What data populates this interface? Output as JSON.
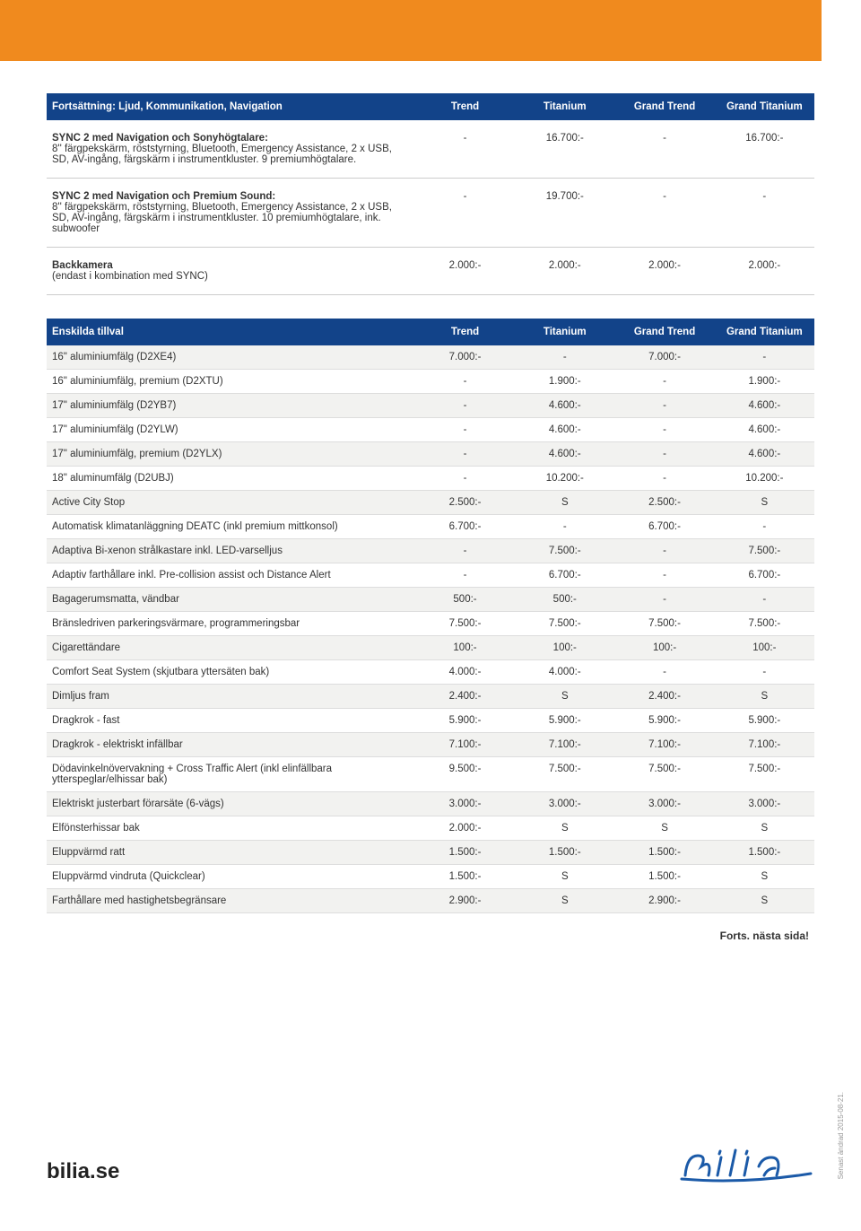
{
  "colors": {
    "orange": "#f08a1e",
    "header_blue": "#124389",
    "row_alt": "#f2f2f0",
    "text": "#333333",
    "border": "#cccccc"
  },
  "table1": {
    "header": [
      "Fortsättning: Ljud, Kommunikation, Navigation",
      "Trend",
      "Titanium",
      "Grand Trend",
      "Grand Titanium"
    ],
    "rows": [
      {
        "title": "SYNC 2 med Navigation och Sonyhögtalare:",
        "desc": "8'' färgpekskärm, röststyrning, Bluetooth, Emergency Assistance, 2 x USB, SD, AV-ingång, färgskärm i instrumentkluster. 9 premiumhögtalare.",
        "vals": [
          "-",
          "16.700:-",
          "-",
          "16.700:-"
        ]
      },
      {
        "title": "SYNC 2 med Navigation och Premium Sound:",
        "desc": "8'' färgpekskärm, röststyrning, Bluetooth, Emergency Assistance, 2 x USB, SD, AV-ingång, färgskärm i instrumentkluster. 10 premiumhögtalare, ink. subwoofer",
        "vals": [
          "-",
          "19.700:-",
          "-",
          "-"
        ]
      },
      {
        "title": "Backkamera",
        "desc": "(endast i kombination med SYNC)",
        "vals": [
          "2.000:-",
          "2.000:-",
          "2.000:-",
          "2.000:-"
        ]
      }
    ]
  },
  "table2": {
    "header": [
      "Enskilda tillval",
      "Trend",
      "Titanium",
      "Grand Trend",
      "Grand Titanium"
    ],
    "rows": [
      [
        "16\" aluminiumfälg (D2XE4)",
        "7.000:-",
        "-",
        "7.000:-",
        "-"
      ],
      [
        "16\" aluminiumfälg, premium (D2XTU)",
        "-",
        "1.900:-",
        "-",
        "1.900:-"
      ],
      [
        "17\" aluminiumfälg (D2YB7)",
        "-",
        "4.600:-",
        "-",
        "4.600:-"
      ],
      [
        "17\" aluminiumfälg (D2YLW)",
        "-",
        "4.600:-",
        "-",
        "4.600:-"
      ],
      [
        "17\" aluminiumfälg, premium (D2YLX)",
        "-",
        "4.600:-",
        "-",
        "4.600:-"
      ],
      [
        "18\" aluminumfälg (D2UBJ)",
        "-",
        "10.200:-",
        "-",
        "10.200:-"
      ],
      [
        "Active City Stop",
        "2.500:-",
        "S",
        "2.500:-",
        "S"
      ],
      [
        "Automatisk klimatanläggning DEATC (inkl premium mittkonsol)",
        "6.700:-",
        "-",
        "6.700:-",
        "-"
      ],
      [
        "Adaptiva Bi-xenon strålkastare inkl. LED-varselljus",
        "-",
        "7.500:-",
        "-",
        "7.500:-"
      ],
      [
        "Adaptiv farthållare inkl. Pre-collision assist och Distance Alert",
        "-",
        "6.700:-",
        "-",
        "6.700:-"
      ],
      [
        "Bagagerumsmatta, vändbar",
        "500:-",
        "500:-",
        "-",
        "-"
      ],
      [
        "Bränsledriven parkeringsvärmare, programmeringsbar",
        "7.500:-",
        "7.500:-",
        "7.500:-",
        "7.500:-"
      ],
      [
        "Cigarettändare",
        "100:-",
        "100:-",
        "100:-",
        "100:-"
      ],
      [
        "Comfort Seat System (skjutbara yttersäten bak)",
        "4.000:-",
        "4.000:-",
        "-",
        "-"
      ],
      [
        "Dimljus fram",
        "2.400:-",
        "S",
        "2.400:-",
        "S"
      ],
      [
        "Dragkrok - fast",
        "5.900:-",
        "5.900:-",
        "5.900:-",
        "5.900:-"
      ],
      [
        "Dragkrok - elektriskt infällbar",
        "7.100:-",
        "7.100:-",
        "7.100:-",
        "7.100:-"
      ],
      [
        "Dödavinkelnövervakning + Cross Traffic Alert (inkl elinfällbara ytterspeglar/elhissar bak)",
        "9.500:-",
        "7.500:-",
        "7.500:-",
        "7.500:-"
      ],
      [
        "Elektriskt justerbart förarsäte (6-vägs)",
        "3.000:-",
        "3.000:-",
        "3.000:-",
        "3.000:-"
      ],
      [
        "Elfönsterhissar bak",
        "2.000:-",
        "S",
        "S",
        "S"
      ],
      [
        "Eluppvärmd ratt",
        "1.500:-",
        "1.500:-",
        "1.500:-",
        "1.500:-"
      ],
      [
        "Eluppvärmd vindruta (Quickclear)",
        "1.500:-",
        "S",
        "1.500:-",
        "S"
      ],
      [
        "Farthållare med hastighetsbegränsare",
        "2.900:-",
        "S",
        "2.900:-",
        "S"
      ]
    ]
  },
  "forts_label": "Forts. nästa sida!",
  "footer_url": "bilia.se",
  "side_note": "Senast ändrad 2015-08-21."
}
